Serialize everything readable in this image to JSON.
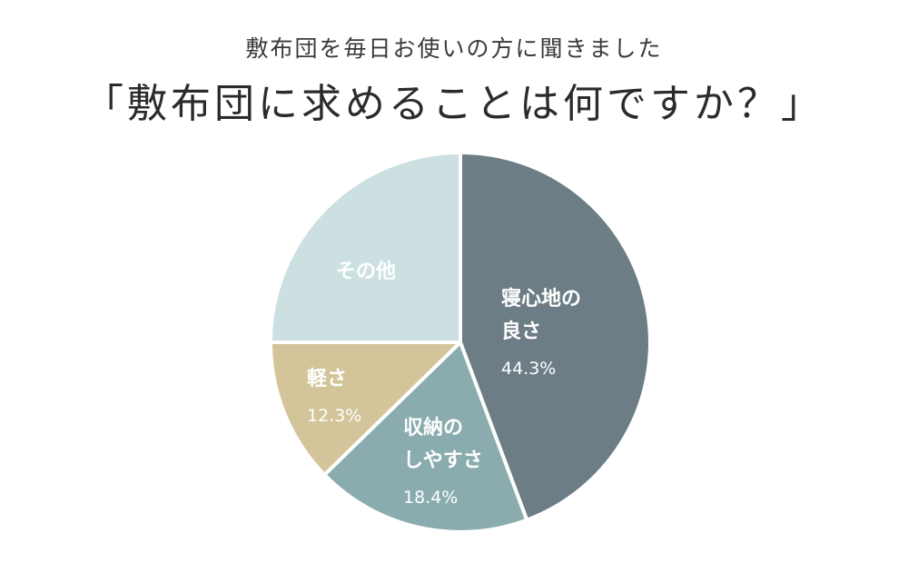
{
  "chart_data": {
    "type": "pie",
    "subtitle": "敷布団を毎日お使いの方に聞きました",
    "title": "「敷布団に求めることは何ですか？」",
    "slices": [
      {
        "label": [
          "寝心地の",
          "良さ"
        ],
        "value": 44.3,
        "value_label": "44.3%",
        "color": "#6d7d86"
      },
      {
        "label": [
          "収納の",
          "しやすさ"
        ],
        "value": 18.4,
        "value_label": "18.4%",
        "color": "#8aacae"
      },
      {
        "label": [
          "軽さ"
        ],
        "value": 12.3,
        "value_label": "12.3%",
        "color": "#d3c49a"
      },
      {
        "label": [
          "その他"
        ],
        "value": 25.0,
        "value_label": "",
        "color": "#cce0e2"
      }
    ],
    "start_angle_deg": 0,
    "direction": "clockwise",
    "legend": "none"
  }
}
